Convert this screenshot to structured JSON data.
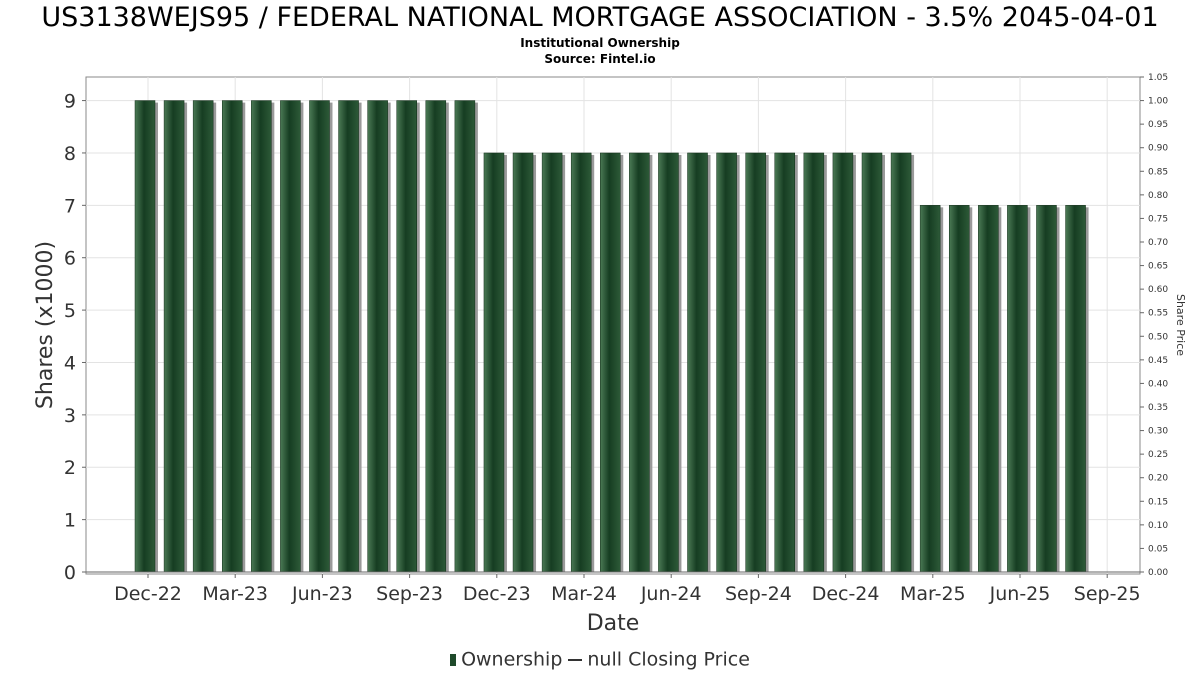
{
  "header": {
    "title": "US3138WEJS95 / FEDERAL NATIONAL MORTGAGE ASSOCIATION - 3.5% 2045-04-01",
    "subtitle": "Institutional Ownership",
    "source": "Source: Fintel.io"
  },
  "legend": {
    "ownership": "Ownership",
    "price": "null Closing Price"
  },
  "colors": {
    "bar": "#1f4a2a",
    "bar_highlight": "#3a6b45",
    "shadow": "#9a9a9a",
    "grid": "#e3e3e3"
  },
  "chart_data": {
    "type": "bar",
    "xlabel": "Date",
    "ylabel": "Shares (x1000)",
    "y2label": "Share Price",
    "ylim": [
      0,
      9.45
    ],
    "y2lim": [
      0,
      1.05
    ],
    "yticks": [
      "0",
      "1",
      "2",
      "3",
      "4",
      "5",
      "6",
      "7",
      "8",
      "9"
    ],
    "y2ticks": [
      "0.00",
      "0.05",
      "0.10",
      "0.15",
      "0.20",
      "0.25",
      "0.30",
      "0.35",
      "0.40",
      "0.45",
      "0.50",
      "0.55",
      "0.60",
      "0.65",
      "0.70",
      "0.75",
      "0.80",
      "0.85",
      "0.90",
      "0.95",
      "1.00",
      "1.05"
    ],
    "xticks": [
      "Dec-22",
      "Mar-23",
      "Jun-23",
      "Sep-23",
      "Dec-23",
      "Mar-24",
      "Jun-24",
      "Sep-24",
      "Dec-24",
      "Mar-25",
      "Jun-25",
      "Sep-25"
    ],
    "grid": true,
    "legend_position": "bottom",
    "series": [
      {
        "name": "Ownership",
        "values": [
          9,
          9,
          9,
          9,
          9,
          9,
          9,
          9,
          9,
          9,
          9,
          9,
          8,
          8,
          8,
          8,
          8,
          8,
          8,
          8,
          8,
          8,
          8,
          8,
          8,
          8,
          8,
          7,
          7,
          7,
          7,
          7,
          7
        ]
      },
      {
        "name": "null Closing Price",
        "values": []
      }
    ]
  }
}
